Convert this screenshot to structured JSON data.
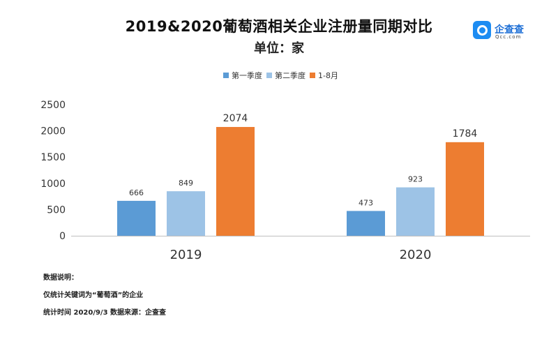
{
  "chart_data": {
    "type": "bar",
    "title": "2019&2020葡萄酒相关企业注册量同期对比",
    "subtitle": "单位：家",
    "categories": [
      "2019",
      "2020"
    ],
    "series": [
      {
        "name": "第一季度",
        "values": [
          666,
          473
        ],
        "color": "#5b9bd5"
      },
      {
        "name": "第二季度",
        "values": [
          849,
          923
        ],
        "color": "#9dc3e6"
      },
      {
        "name": "1-8月",
        "values": [
          2074,
          1784
        ],
        "color": "#ed7d31"
      }
    ],
    "ylim": [
      0,
      2500
    ],
    "yticks": [
      0,
      500,
      1000,
      1500,
      2000,
      2500
    ],
    "grid": false,
    "legend": "top-center"
  },
  "logo": {
    "name": "企查查",
    "sub": "Qcc.com"
  },
  "notes": [
    "数据说明：",
    "仅统计关键词为“葡萄酒”的企业",
    "统计时间 2020/9/3  数据来源：企查查"
  ]
}
